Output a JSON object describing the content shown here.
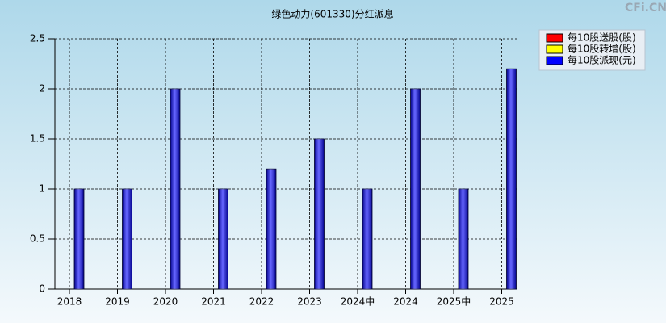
{
  "chart_data": {
    "type": "bar",
    "title": "绿色动力(601330)分红派息",
    "watermark": "CFi.CN",
    "categories": [
      "2018",
      "2019",
      "2020",
      "2021",
      "2022",
      "2023",
      "2024中",
      "2024",
      "2025中",
      "2025"
    ],
    "series": [
      {
        "name": "每10股送股(股)",
        "color": "#ff0000",
        "values": [
          0,
          0,
          0,
          0,
          0,
          0,
          0,
          0,
          0,
          0
        ]
      },
      {
        "name": "每10股转增(股)",
        "color": "#ffff00",
        "values": [
          0,
          0,
          0,
          0,
          0,
          0,
          0,
          0,
          0,
          0
        ]
      },
      {
        "name": "每10股派现(元)",
        "color": "#0000ff",
        "values": [
          1,
          1,
          2,
          1,
          1.2,
          1.5,
          1,
          2,
          1,
          2.2
        ]
      }
    ],
    "ylim": [
      0,
      2.5
    ],
    "yticks": [
      0,
      0.5,
      1,
      1.5,
      2,
      2.5
    ],
    "grid": true,
    "legend": "top-right"
  }
}
